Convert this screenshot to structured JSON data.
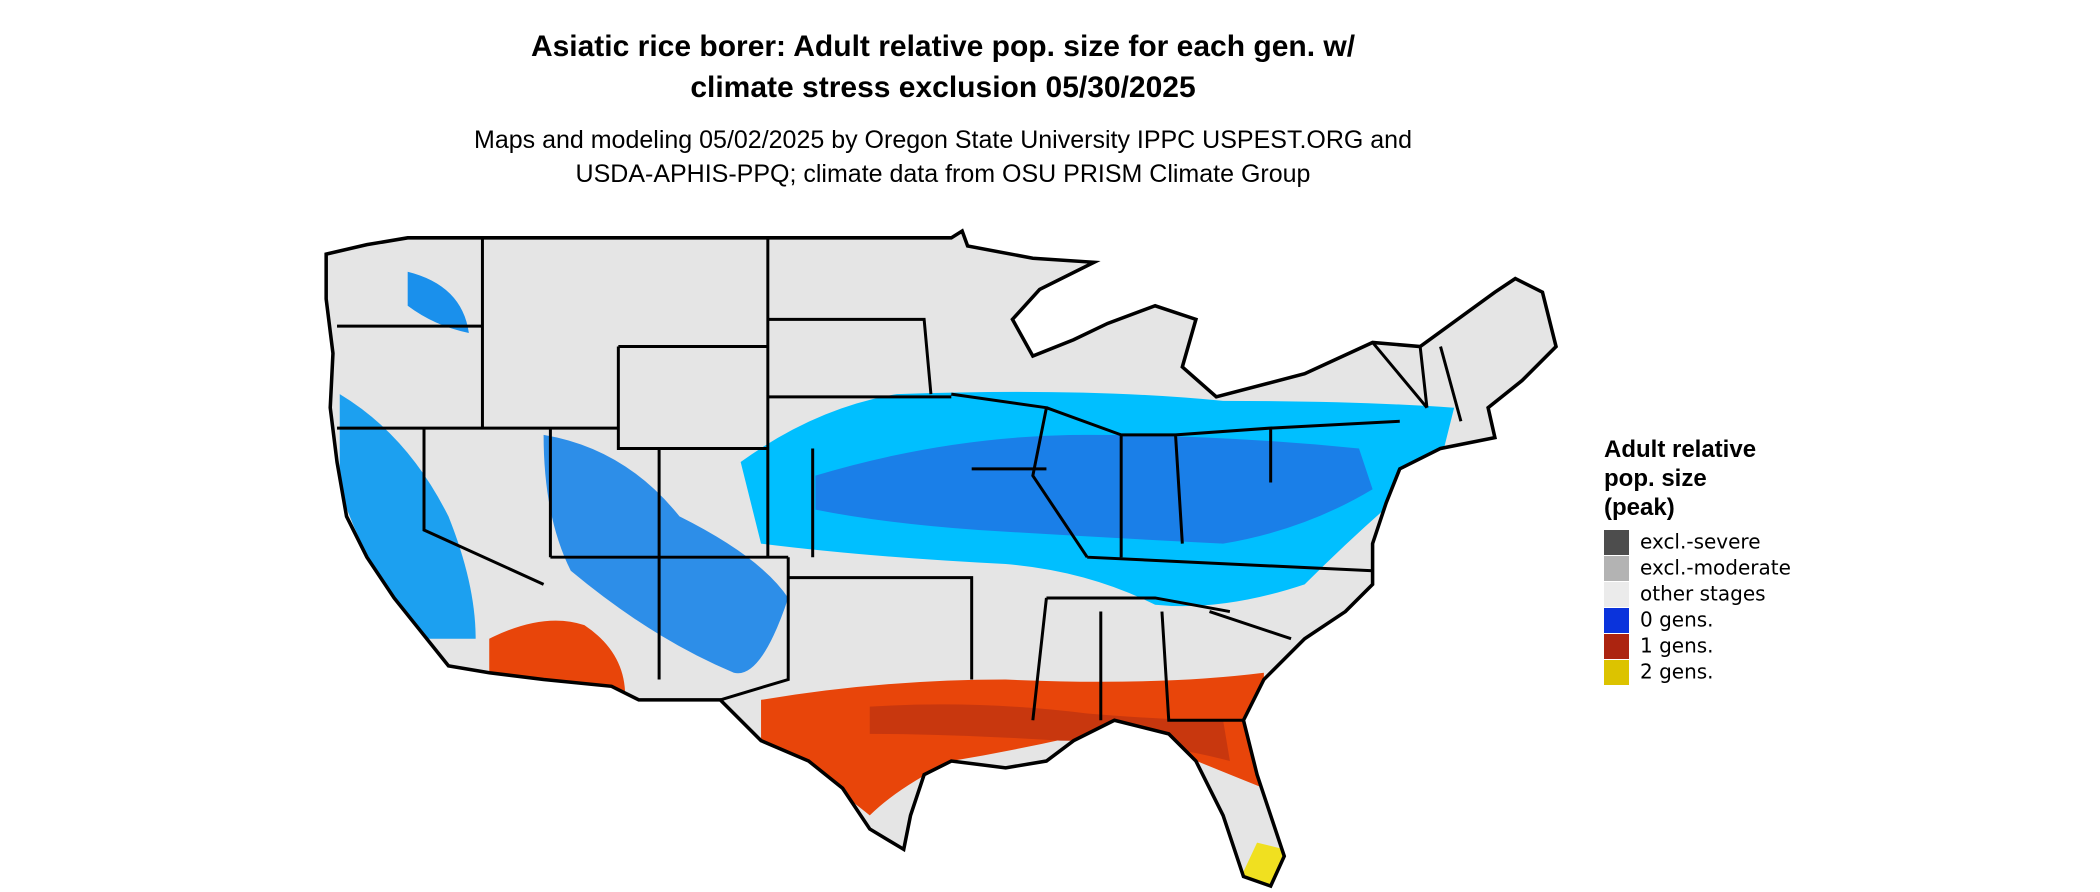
{
  "title": {
    "lines": [
      "Asiatic rice borer: Adult relative pop. size for each gen. w/",
      "climate stress exclusion 05/30/2025"
    ]
  },
  "subtitle": {
    "lines": [
      "Maps and modeling 05/02/2025 by Oregon State University IPPC USPEST.ORG and",
      "USDA-APHIS-PPQ; climate data from OSU PRISM Climate Group"
    ]
  },
  "legend": {
    "title": {
      "lines": [
        "Adult relative",
        "pop. size",
        "(peak)"
      ]
    },
    "items": [
      {
        "label": "excl.-severe",
        "color": "#4d4d4d"
      },
      {
        "label": "excl.-moderate",
        "color": "#b3b3b3"
      },
      {
        "label": "other stages",
        "color": "#ebebeb"
      },
      {
        "label": "0 gens.",
        "color": "#0a33dc"
      },
      {
        "label": "1 gens.",
        "color": "#ac2410"
      },
      {
        "label": "2 gens.",
        "color": "#dcc300"
      }
    ]
  }
}
